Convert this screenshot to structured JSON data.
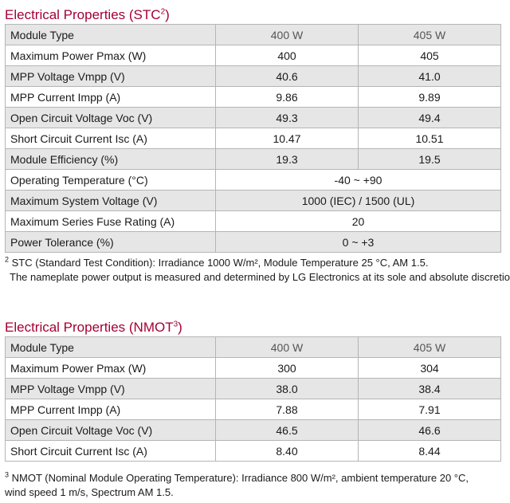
{
  "stc": {
    "title": "Electrical Properties (STC",
    "title_sup": "2",
    "title_close": ")",
    "header": {
      "label": "Module Type",
      "col1": "400 W",
      "col2": "405 W"
    },
    "rows": [
      {
        "label": "Maximum Power Pmax (W)",
        "v1": "400",
        "v2": "405"
      },
      {
        "label": "MPP Voltage Vmpp (V)",
        "v1": "40.6",
        "v2": "41.0"
      },
      {
        "label": "MPP Current Impp (A)",
        "v1": "9.86",
        "v2": "9.89"
      },
      {
        "label": "Open Circuit Voltage Voc (V)",
        "v1": "49.3",
        "v2": "49.4"
      },
      {
        "label": "Short Circuit Current Isc (A)",
        "v1": "10.47",
        "v2": "10.51"
      },
      {
        "label": "Module Efficiency (%)",
        "v1": "19.3",
        "v2": "19.5"
      }
    ],
    "merged_rows": [
      {
        "label": "Operating Temperature (°C)",
        "value": "-40 ~ +90"
      },
      {
        "label": "Maximum System Voltage (V)",
        "value": "1000 (IEC) / 1500 (UL)"
      },
      {
        "label": "Maximum Series Fuse Rating (A)",
        "value": "20"
      },
      {
        "label": "Power Tolerance (%)",
        "value": "0 ~ +3"
      }
    ],
    "note_sup": "2",
    "note_line1": "STC (Standard Test Condition): Irradiance 1000 W/m², Module Temperature 25 °C, AM 1.5.",
    "note_line2": "The nameplate power output is measured and determined by LG Electronics at its sole and absolute discretion"
  },
  "nmot": {
    "title": "Electrical Properties (NMOT",
    "title_sup": "3",
    "title_close": ")",
    "header": {
      "label": "Module Type",
      "col1": "400 W",
      "col2": "405 W"
    },
    "rows": [
      {
        "label": "Maximum Power Pmax (W)",
        "v1": "300",
        "v2": "304"
      },
      {
        "label": "MPP Voltage Vmpp (V)",
        "v1": "38.0",
        "v2": "38.4"
      },
      {
        "label": "MPP Current Impp (A)",
        "v1": "7.88",
        "v2": "7.91"
      },
      {
        "label": "Open Circuit Voltage Voc (V)",
        "v1": "46.5",
        "v2": "46.6"
      },
      {
        "label": "Short Circuit Current Isc (A)",
        "v1": "8.40",
        "v2": "8.44"
      }
    ],
    "note_sup": "3",
    "note_line1": "NMOT (Nominal Module Operating Temperature): Irradiance 800 W/m², ambient temperature 20 °C,",
    "note_line2": "wind speed 1 m/s, Spectrum AM 1.5."
  }
}
